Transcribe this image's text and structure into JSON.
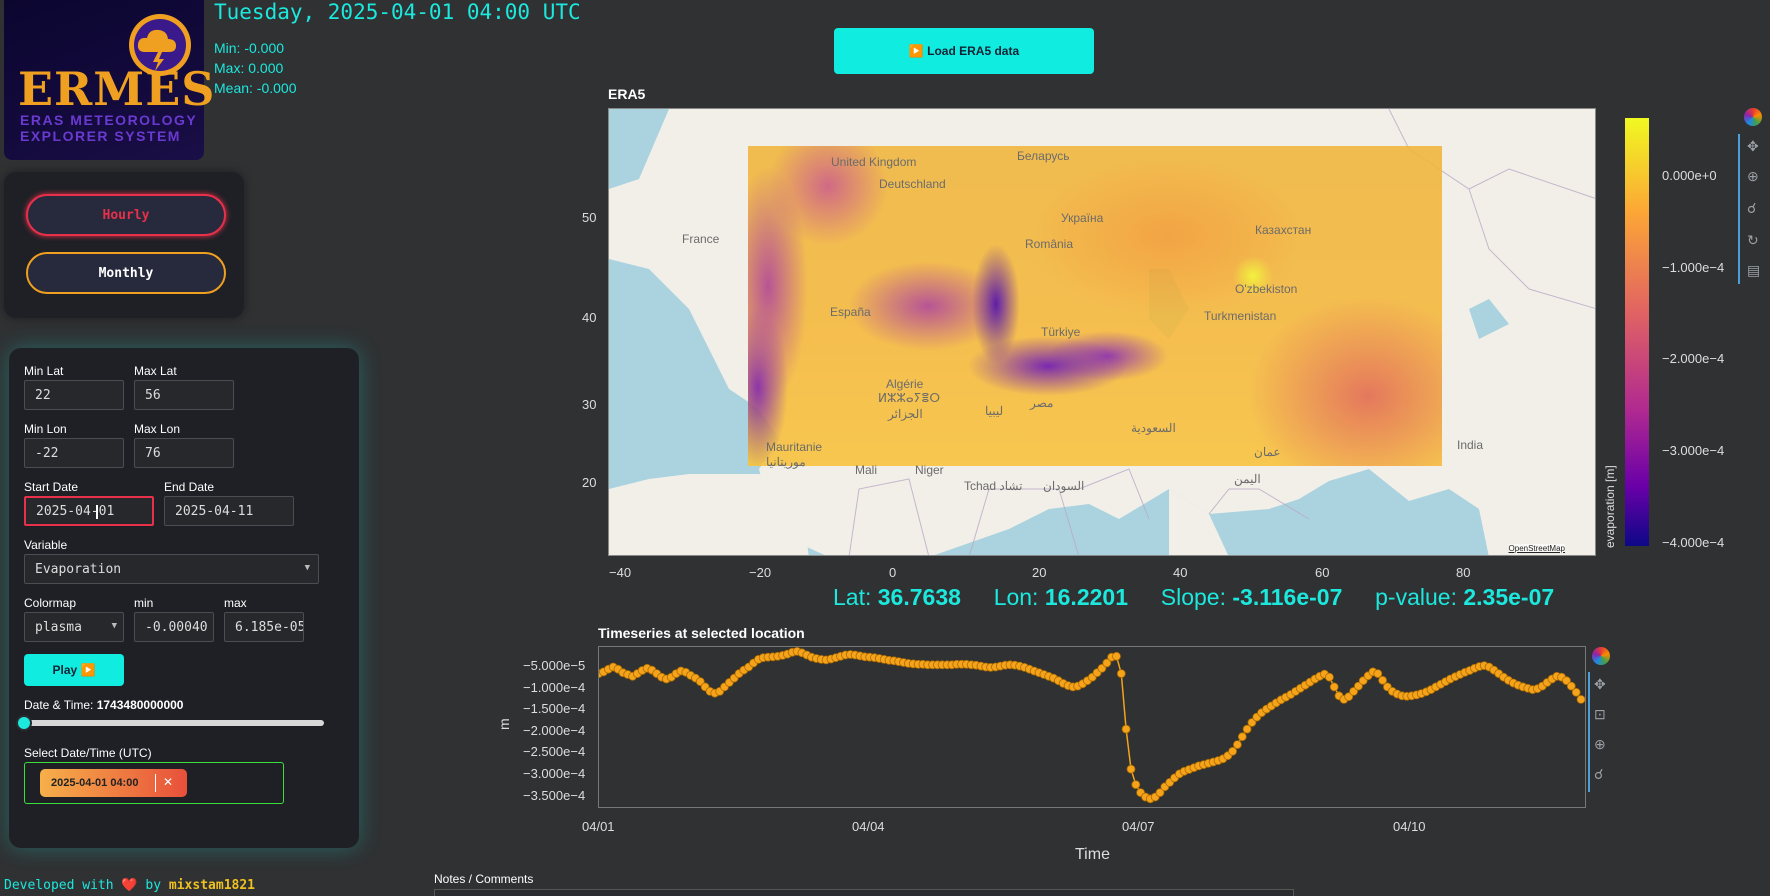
{
  "header": {
    "datetime_title": "Tuesday, 2025-04-01 04:00 UTC",
    "stats_min": "Min: -0.000",
    "stats_max": "Max: 0.000",
    "stats_mean": "Mean: -0.000",
    "load_button": "▶️ Load ERA5 data"
  },
  "logo": {
    "word": "ERMES",
    "sub1": "ERAS METEOROLOGY",
    "sub2": "EXPLORER SYSTEM"
  },
  "frequency": {
    "hourly": "Hourly",
    "monthly": "Monthly"
  },
  "controls": {
    "min_lat_label": "Min Lat",
    "min_lat": "22",
    "max_lat_label": "Max Lat",
    "max_lat": "56",
    "min_lon_label": "Min Lon",
    "min_lon": "-22",
    "max_lon_label": "Max Lon",
    "max_lon": "76",
    "start_date_label": "Start Date",
    "start_date": "2025-04-01",
    "end_date_label": "End Date",
    "end_date": "2025-04-11",
    "variable_label": "Variable",
    "variable": "Evaporation",
    "colormap_label": "Colormap",
    "colormap": "plasma",
    "min_label": "min",
    "min_value": "-0.00040",
    "max_label": "max",
    "max_value": "6.185e-05",
    "play_button": "Play ▶️",
    "datetime_label": "Date & Time:",
    "datetime_value": "1743480000000",
    "slider_fraction": 0.0,
    "select_label": "Select Date/Time (UTC)",
    "selected_chip": "2025-04-01 04:00",
    "chip_remove": "✕"
  },
  "map": {
    "title": "ERA5",
    "attribution": "OpenStreetMap",
    "y_ticks": [
      "50",
      "40",
      "30",
      "20"
    ],
    "x_ticks": [
      "−40",
      "−20",
      "0",
      "20",
      "40",
      "60",
      "80"
    ],
    "colorbar_label": "evaporation [m]",
    "colorbar_ticks": [
      "0.000e+0",
      "−1.000e−4",
      "−2.000e−4",
      "−3.000e−4",
      "−4.000e−4"
    ],
    "place_labels": [
      "Deutschland",
      "France",
      "Беларусь",
      "Україна",
      "România",
      "España",
      "Türkiye",
      "Казахстан",
      "O'zbekiston",
      "Turkmenistan",
      "Algérie",
      "ⵍⵣⵣⴰⵢⴻⵔ",
      "الجزائر",
      "مصر",
      "ليبيا",
      "السعودية",
      "Mauritanie",
      "موريتانيا",
      "Mali",
      "Niger",
      "Tchad تشاد",
      "السودان",
      "اليمن",
      "عمان",
      "India",
      "United Kingdom"
    ]
  },
  "stats_line": {
    "lat_label": "Lat:",
    "lat": "36.7638",
    "lon_label": "Lon:",
    "lon": "16.2201",
    "slope_label": "Slope:",
    "slope": "-3.116e-07",
    "p_label": "p-value:",
    "p": "2.35e-07"
  },
  "colors": {
    "accent": "#1ce8dd",
    "series": "#f5a31a",
    "hourly_border": "#e8304a",
    "monthly_border": "#f0a020"
  },
  "chart_data": {
    "type": "line",
    "title": "Timeseries at selected location",
    "xlabel": "Time",
    "ylabel": "m",
    "x_ticks": [
      "04/01",
      "04/04",
      "04/07",
      "04/10"
    ],
    "y_ticks": [
      "−5.000e−5",
      "−1.000e−4",
      "−1.500e−4",
      "−2.000e−4",
      "−2.500e−4",
      "−3.000e−4",
      "−3.500e−4"
    ],
    "ylim": [
      -0.000375,
      -1e-05
    ],
    "series": [
      {
        "values": [
          -7.5e-05,
          -7.2e-05,
          -7e-05,
          -6.6e-05,
          -6e-05,
          -5.5e-05,
          -6e-05,
          -6.8e-05,
          -7.2e-05,
          -7.6e-05,
          -7e-05,
          -6.3e-05,
          -5.8e-05,
          -6.2e-05,
          -7e-05,
          -7.8e-05,
          -8.2e-05,
          -7.8e-05,
          -7e-05,
          -6.4e-05,
          -6.7e-05,
          -7.4e-05,
          -8e-05,
          -8.8e-05,
          -0.0001,
          -0.00011,
          -0.000114,
          -0.00011,
          -0.0001,
          -9e-05,
          -8e-05,
          -7e-05,
          -6.2e-05,
          -5.5e-05,
          -4.6e-05,
          -3.8e-05,
          -3.4e-05,
          -3.3e-05,
          -3.2e-05,
          -3.1e-05,
          -2.9e-05,
          -2.6e-05,
          -2.2e-05,
          -2e-05,
          -2.3e-05,
          -2.8e-05,
          -3.3e-05,
          -3.6e-05,
          -3.8e-05,
          -3.9e-05,
          -3.7e-05,
          -3.4e-05,
          -3.1e-05,
          -2.8e-05,
          -2.7e-05,
          -2.8e-05,
          -3e-05,
          -3.2e-05,
          -3.3e-05,
          -3.4e-05,
          -3.6e-05,
          -3.8e-05,
          -4e-05,
          -4.1e-05,
          -4.3e-05,
          -4.5e-05,
          -4.7e-05,
          -4.8e-05,
          -4.9e-05,
          -4.9e-05,
          -5e-05,
          -5e-05,
          -5e-05,
          -5e-05,
          -5e-05,
          -5e-05,
          -4.9e-05,
          -4.9e-05,
          -4.9e-05,
          -5e-05,
          -5.1e-05,
          -5.3e-05,
          -5.5e-05,
          -5.6e-05,
          -5.5e-05,
          -5.3e-05,
          -5.1e-05,
          -5e-05,
          -5.1e-05,
          -5.3e-05,
          -5.6e-05,
          -6e-05,
          -6.4e-05,
          -6.8e-05,
          -7.2e-05,
          -7.6e-05,
          -8e-05,
          -8.6e-05,
          -9.2e-05,
          -9.7e-05,
          -0.0001,
          -9.8e-05,
          -9.3e-05,
          -8.6e-05,
          -7.8e-05,
          -6.8e-05,
          -5.8e-05,
          -4.6e-05,
          -3.3e-05,
          -3.1e-05,
          -7e-05,
          -0.000195,
          -0.000285,
          -0.00032,
          -0.000338,
          -0.000348,
          -0.000352,
          -0.000348,
          -0.000338,
          -0.000325,
          -0.000315,
          -0.000305,
          -0.000296,
          -0.00029,
          -0.000286,
          -0.000282,
          -0.000278,
          -0.000275,
          -0.000272,
          -0.000269,
          -0.000266,
          -0.000262,
          -0.000255,
          -0.000245,
          -0.00023,
          -0.000212,
          -0.000195,
          -0.00018,
          -0.000168,
          -0.000158,
          -0.00015,
          -0.000143,
          -0.000136,
          -0.000129,
          -0.000123,
          -0.000117,
          -0.00011,
          -0.000103,
          -9.6e-05,
          -8.9e-05,
          -8.2e-05,
          -7.6e-05,
          -7.1e-05,
          -7.8e-05,
          -0.0001,
          -0.00012,
          -0.000128,
          -0.000122,
          -0.00011,
          -9.8e-05,
          -8.6e-05,
          -7.5e-05,
          -6.6e-05,
          -7e-05,
          -8.5e-05,
          -0.0001,
          -0.00011,
          -0.000116,
          -0.00012,
          -0.000121,
          -0.00012,
          -0.000118,
          -0.000115,
          -0.000111,
          -0.000106,
          -0.0001,
          -9.4e-05,
          -8.8e-05,
          -8.2e-05,
          -7.7e-05,
          -7.2e-05,
          -6.7e-05,
          -6.3e-05,
          -5.8e-05,
          -5.4e-05,
          -5.2e-05,
          -5.5e-05,
          -6.2e-05,
          -7e-05,
          -7.8e-05,
          -8.5e-05,
          -9.1e-05,
          -9.6e-05,
          -0.0001,
          -0.000103,
          -0.000106,
          -0.000104,
          -9.8e-05,
          -9e-05,
          -8.2e-05,
          -7.6e-05,
          -7.8e-05,
          -8.6e-05,
          -9.8e-05,
          -0.000112,
          -0.000128
        ]
      }
    ]
  },
  "footer": {
    "credit_prefix": "Developed with ❤️ by ",
    "credit_user": "mixstam1821",
    "notes_label": "Notes / Comments"
  }
}
